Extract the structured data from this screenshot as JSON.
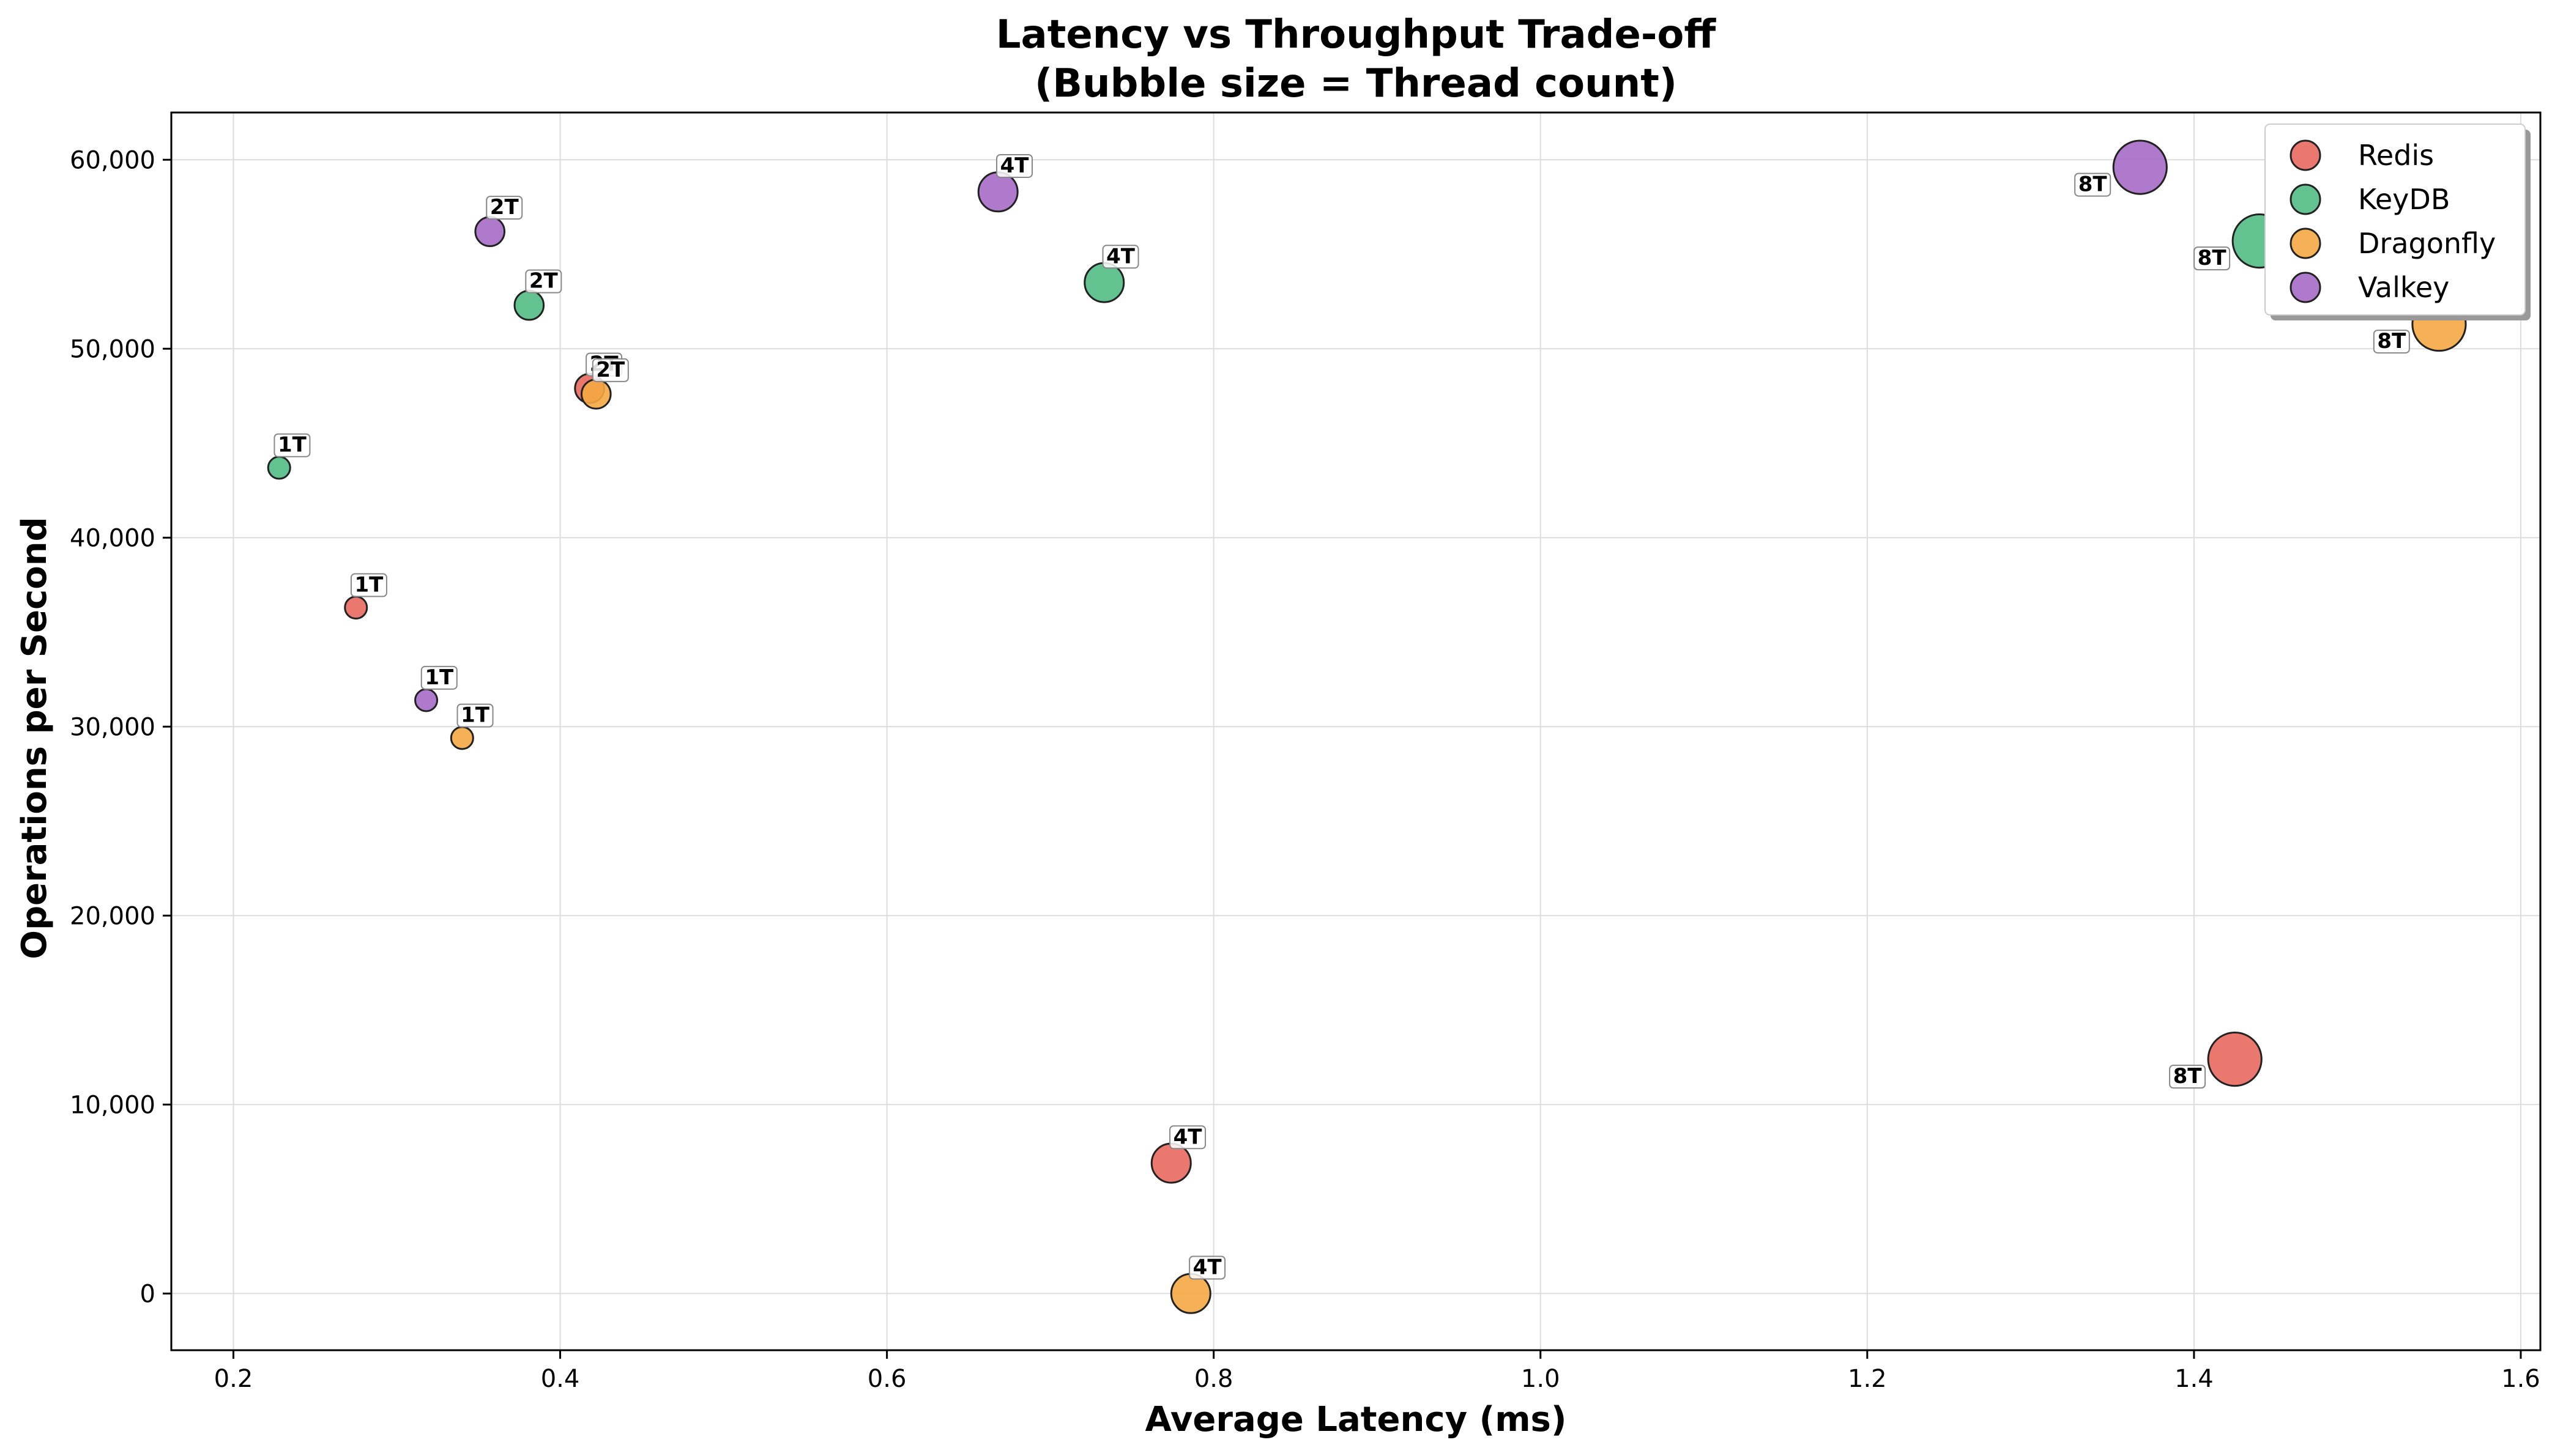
{
  "chart_data": {
    "type": "scatter",
    "title": "Latency vs Throughput Trade-off",
    "subtitle": "(Bubble size = Thread count)",
    "xlabel": "Average Latency (ms)",
    "ylabel": "Operations per Second",
    "xlim": [
      0.162,
      1.612
    ],
    "ylim": [
      -3000,
      62500
    ],
    "x_ticks": [
      0.2,
      0.4,
      0.6,
      0.8,
      1.0,
      1.2,
      1.4,
      1.6
    ],
    "x_tick_labels": [
      "0.2",
      "0.4",
      "0.6",
      "0.8",
      "1.0",
      "1.2",
      "1.4",
      "1.6"
    ],
    "y_ticks": [
      0,
      10000,
      20000,
      30000,
      40000,
      50000,
      60000
    ],
    "y_tick_labels": [
      "0",
      "10,000",
      "20,000",
      "30,000",
      "40,000",
      "50,000",
      "60,000"
    ],
    "grid": true,
    "legend_position": "top-right",
    "series": [
      {
        "name": "Redis",
        "color": "#e8695f",
        "points": [
          {
            "x": 0.275,
            "y": 36300,
            "threads": 1,
            "label": "1T"
          },
          {
            "x": 0.418,
            "y": 47900,
            "threads": 2,
            "label": "2T"
          },
          {
            "x": 0.774,
            "y": 6900,
            "threads": 4,
            "label": "4T"
          },
          {
            "x": 1.425,
            "y": 12400,
            "threads": 8,
            "label": "8T"
          }
        ]
      },
      {
        "name": "KeyDB",
        "color": "#52bd84",
        "points": [
          {
            "x": 0.228,
            "y": 43700,
            "threads": 1,
            "label": "1T"
          },
          {
            "x": 0.381,
            "y": 52300,
            "threads": 2,
            "label": "2T"
          },
          {
            "x": 0.733,
            "y": 53500,
            "threads": 4,
            "label": "4T"
          },
          {
            "x": 1.44,
            "y": 55700,
            "threads": 8,
            "label": "8T"
          }
        ]
      },
      {
        "name": "Dragonfly",
        "color": "#f5a742",
        "points": [
          {
            "x": 0.34,
            "y": 29400,
            "threads": 1,
            "label": "1T"
          },
          {
            "x": 0.422,
            "y": 47600,
            "threads": 2,
            "label": "2T"
          },
          {
            "x": 0.786,
            "y": 0,
            "threads": 4,
            "label": "4T"
          },
          {
            "x": 1.55,
            "y": 51300,
            "threads": 8,
            "label": "8T"
          }
        ]
      },
      {
        "name": "Valkey",
        "color": "#a66bc6",
        "points": [
          {
            "x": 0.318,
            "y": 31400,
            "threads": 1,
            "label": "1T"
          },
          {
            "x": 0.357,
            "y": 56200,
            "threads": 2,
            "label": "2T"
          },
          {
            "x": 0.668,
            "y": 58300,
            "threads": 4,
            "label": "4T"
          },
          {
            "x": 1.367,
            "y": 59600,
            "threads": 8,
            "label": "8T"
          }
        ]
      }
    ]
  }
}
